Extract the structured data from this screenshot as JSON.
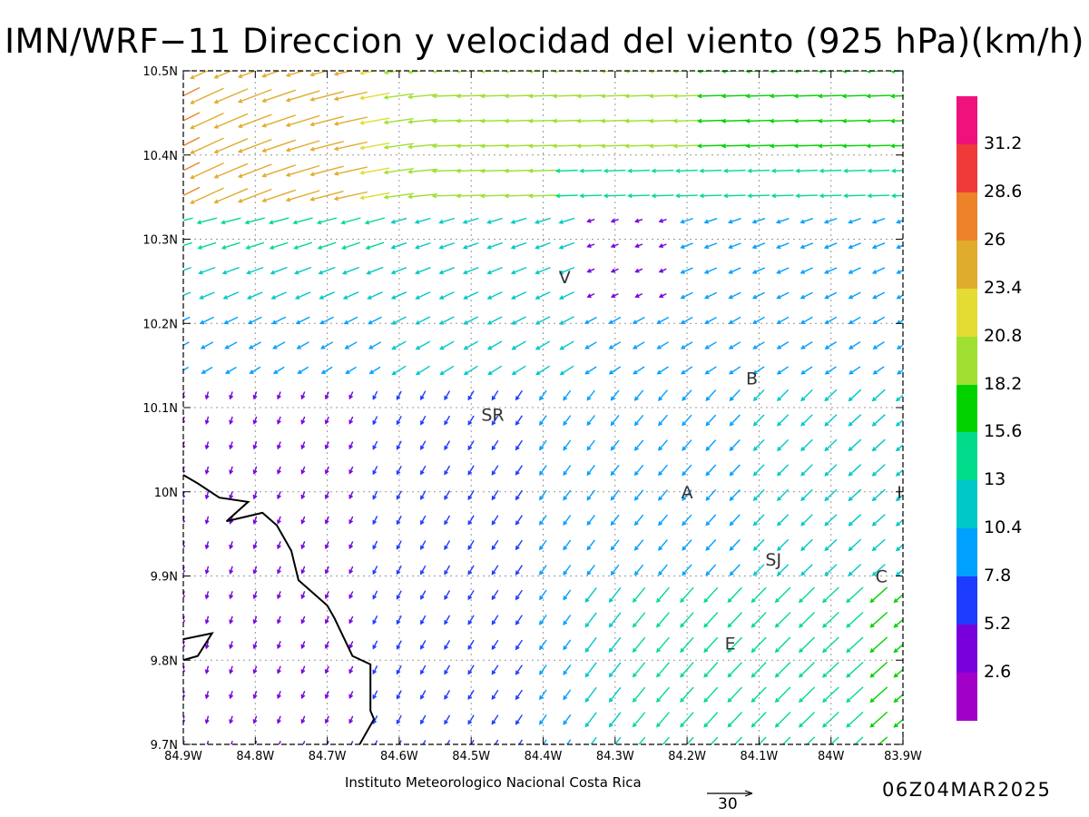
{
  "title": "IMN/WRF−11 Direccion y velocidad del viento (925 hPa)(km/h)",
  "credit": "Instituto Meteorologico Nacional Costa Rica",
  "timestamp": "06Z04MAR2025",
  "reference_vector": {
    "value": "30"
  },
  "axes": {
    "x_ticks": [
      "84.9W",
      "84.8W",
      "84.7W",
      "84.6W",
      "84.5W",
      "84.4W",
      "84.3W",
      "84.2W",
      "84.1W",
      "84W",
      "83.9W"
    ],
    "y_ticks": [
      "10.5N",
      "10.4N",
      "10.3N",
      "10.2N",
      "10.1N",
      "10N",
      "9.9N",
      "9.8N",
      "9.7N"
    ],
    "lon_range": [
      -84.9,
      -83.9
    ],
    "lat_range": [
      9.7,
      10.5
    ],
    "grid": true
  },
  "stations": [
    {
      "label": "V",
      "lon": -84.37,
      "lat": 10.255
    },
    {
      "label": "B",
      "lon": -84.11,
      "lat": 10.135
    },
    {
      "label": "SR",
      "lon": -84.47,
      "lat": 10.092
    },
    {
      "label": "A",
      "lon": -84.2,
      "lat": 10.0
    },
    {
      "label": "I",
      "lon": -83.905,
      "lat": 10.0
    },
    {
      "label": "SJ",
      "lon": -84.08,
      "lat": 9.92
    },
    {
      "label": "C",
      "lon": -83.93,
      "lat": 9.9
    },
    {
      "label": "E",
      "lon": -84.14,
      "lat": 9.82
    }
  ],
  "colorbar": {
    "labels": [
      "31.2",
      "28.6",
      "26",
      "23.4",
      "20.8",
      "18.2",
      "15.6",
      "13",
      "10.4",
      "7.8",
      "5.2",
      "2.6"
    ],
    "colors": [
      "#f0127c",
      "#f03a3a",
      "#ee8228",
      "#e0ac2c",
      "#e4dc32",
      "#a0e032",
      "#00d200",
      "#00dc8c",
      "#00c8c8",
      "#00a0ff",
      "#1e3cff",
      "#7800dc",
      "#a000c8"
    ]
  },
  "coastline": {
    "segments": [
      [
        [
          -84.9,
          10.02
        ],
        [
          -84.88,
          10.01
        ],
        [
          -84.85,
          9.993
        ],
        [
          -84.81,
          9.988
        ],
        [
          -84.84,
          9.965
        ],
        [
          -84.79,
          9.975
        ],
        [
          -84.77,
          9.96
        ],
        [
          -84.75,
          9.93
        ],
        [
          -84.74,
          9.895
        ],
        [
          -84.72,
          9.88
        ],
        [
          -84.7,
          9.865
        ],
        [
          -84.69,
          9.85
        ],
        [
          -84.665,
          9.805
        ],
        [
          -84.64,
          9.795
        ],
        [
          -84.64,
          9.74
        ],
        [
          -84.635,
          9.73
        ],
        [
          -84.655,
          9.7
        ]
      ],
      [
        [
          -84.9,
          9.825
        ],
        [
          -84.86,
          9.832
        ],
        [
          -84.88,
          9.805
        ],
        [
          -84.9,
          9.8
        ]
      ]
    ]
  }
}
